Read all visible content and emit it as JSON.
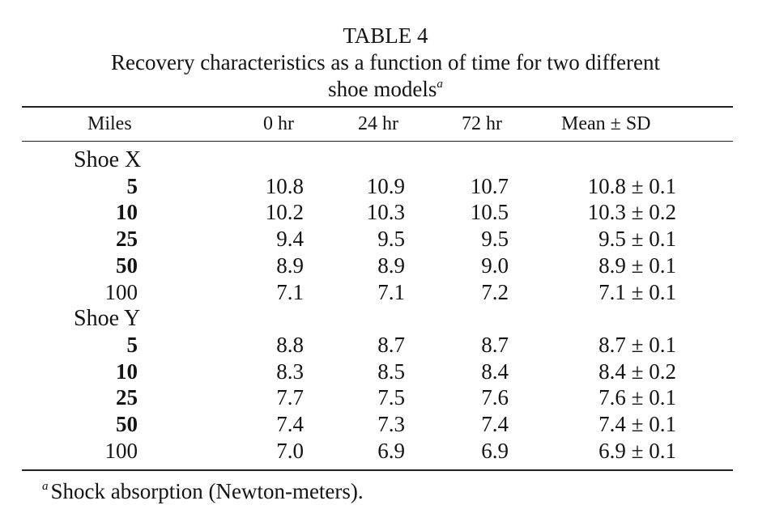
{
  "title": {
    "heading": "TABLE 4",
    "caption_line1": "Recovery characteristics as a function of time for two different",
    "caption_line2": "shoe models",
    "caption_footnote_mark": "a"
  },
  "table": {
    "columns": [
      "Miles",
      "0 hr",
      "24 hr",
      "72 hr",
      "Mean ± SD"
    ],
    "groups": [
      {
        "label": "Shoe X",
        "rows": [
          {
            "miles": "5",
            "h0": "10.8",
            "h24": "10.9",
            "h72": "10.7",
            "mean": "10.8 ± 0.1"
          },
          {
            "miles": "10",
            "h0": "10.2",
            "h24": "10.3",
            "h72": "10.5",
            "mean": "10.3 ± 0.2"
          },
          {
            "miles": "25",
            "h0": "9.4",
            "h24": "9.5",
            "h72": "9.5",
            "mean": "9.5 ± 0.1"
          },
          {
            "miles": "50",
            "h0": "8.9",
            "h24": "8.9",
            "h72": "9.0",
            "mean": "8.9 ± 0.1"
          },
          {
            "miles": "100",
            "h0": "7.1",
            "h24": "7.1",
            "h72": "7.2",
            "mean": "7.1 ± 0.1"
          }
        ]
      },
      {
        "label": "Shoe Y",
        "rows": [
          {
            "miles": "5",
            "h0": "8.8",
            "h24": "8.7",
            "h72": "8.7",
            "mean": "8.7 ± 0.1"
          },
          {
            "miles": "10",
            "h0": "8.3",
            "h24": "8.5",
            "h72": "8.4",
            "mean": "8.4 ± 0.2"
          },
          {
            "miles": "25",
            "h0": "7.7",
            "h24": "7.5",
            "h72": "7.6",
            "mean": "7.6 ± 0.1"
          },
          {
            "miles": "50",
            "h0": "7.4",
            "h24": "7.3",
            "h72": "7.4",
            "mean": "7.4 ± 0.1"
          },
          {
            "miles": "100",
            "h0": "7.0",
            "h24": "6.9",
            "h72": "6.9",
            "mean": "6.9 ± 0.1"
          }
        ]
      }
    ]
  },
  "footnote": {
    "mark": "a",
    "text": "Shock absorption (Newton-meters)."
  }
}
